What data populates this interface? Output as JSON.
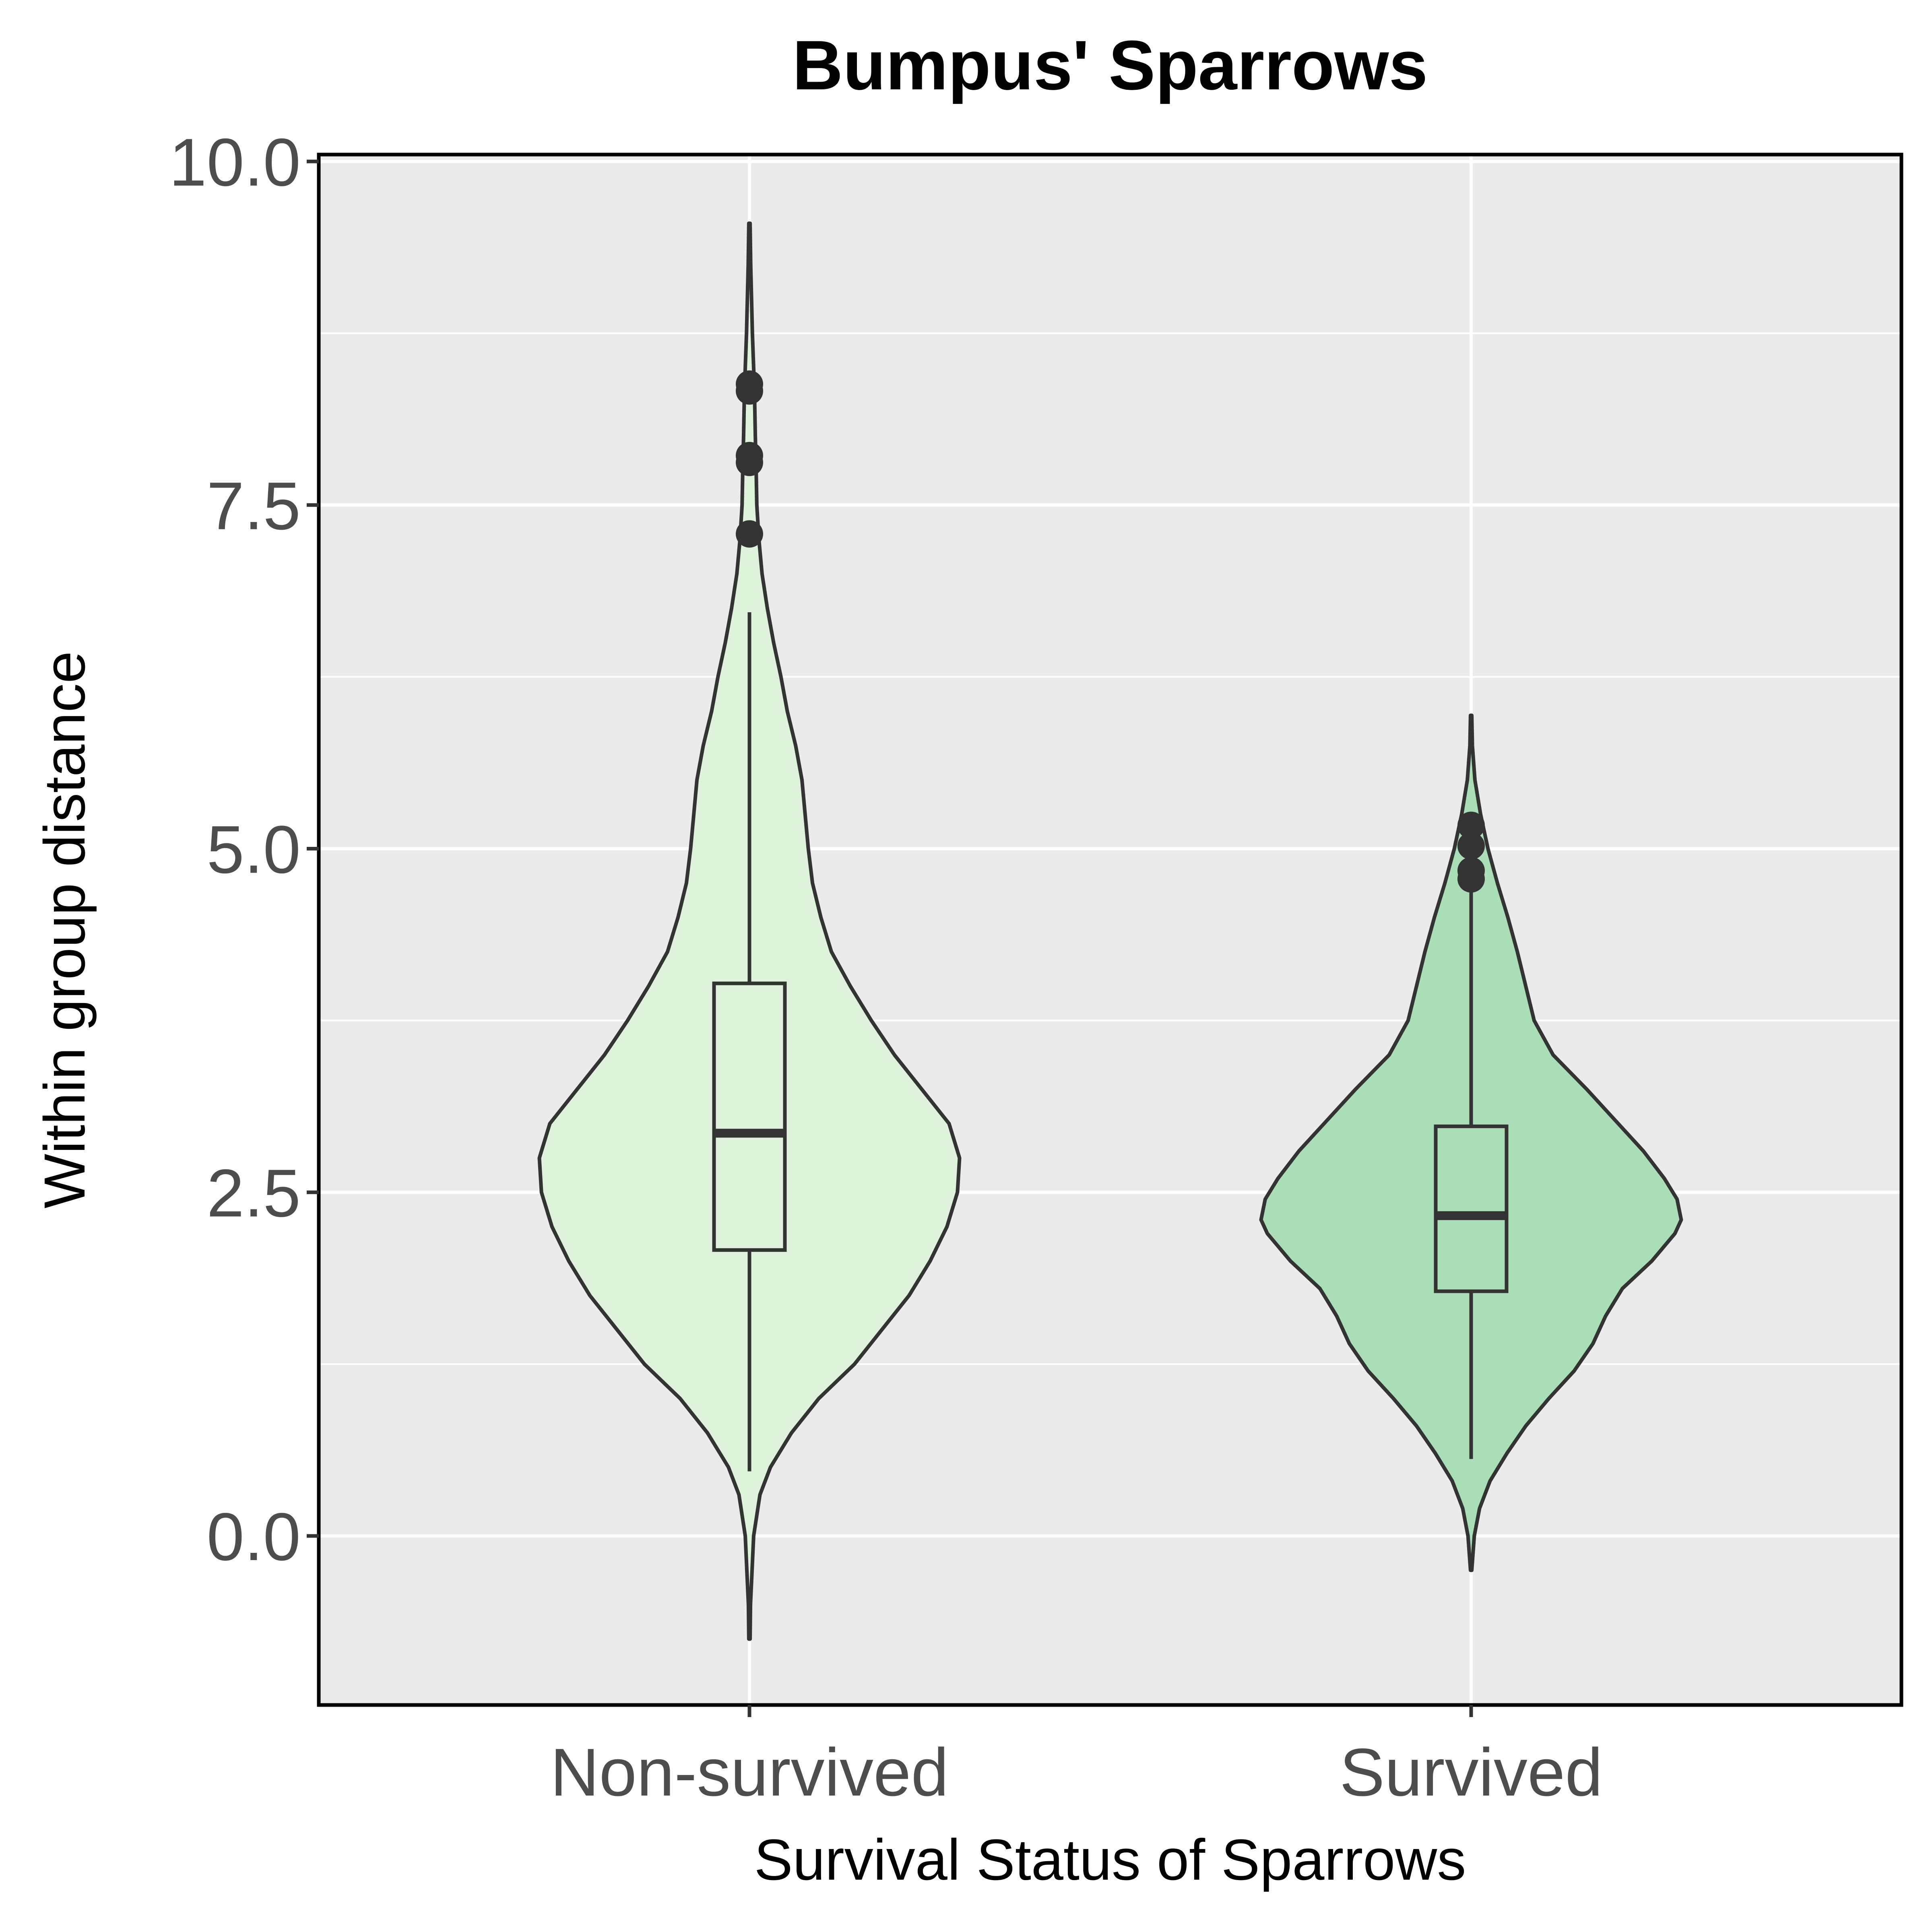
{
  "chart_data": {
    "type": "violin",
    "title": "Bumpus' Sparrows",
    "xlabel": "Survival Status of Sparrows",
    "ylabel": "Within group distance",
    "categories": [
      "Non-survived",
      "Survived"
    ],
    "y_ticks": [
      "0.0",
      "2.5",
      "5.0",
      "7.5",
      "10.0"
    ],
    "y_tick_values": [
      0,
      2.5,
      5,
      7.5,
      10
    ],
    "ylim": [
      -1.23,
      10.05
    ],
    "grid": true,
    "legend": "none",
    "colors": {
      "panel_background": "#ebebeb",
      "grid": "#ffffff",
      "outline": "#333333",
      "panel_border": "#000000"
    },
    "groups": [
      {
        "name": "Non-survived",
        "fill": "#dff2dc",
        "box": {
          "q1": 2.08,
          "median": 2.93,
          "q3": 4.02,
          "whisker_low": 0.47,
          "whisker_high": 6.72
        },
        "outliers": [
          7.29,
          7.81,
          7.86,
          8.33,
          8.38
        ],
        "density": [
          [
            -0.75,
            0.003
          ],
          [
            -0.5,
            0.005
          ],
          [
            0.0,
            0.02
          ],
          [
            0.3,
            0.05
          ],
          [
            0.5,
            0.1
          ],
          [
            0.75,
            0.2
          ],
          [
            1.0,
            0.33
          ],
          [
            1.25,
            0.5
          ],
          [
            1.5,
            0.63
          ],
          [
            1.75,
            0.76
          ],
          [
            2.0,
            0.86
          ],
          [
            2.25,
            0.94
          ],
          [
            2.5,
            0.99
          ],
          [
            2.75,
            1.0
          ],
          [
            3.0,
            0.95
          ],
          [
            3.25,
            0.82
          ],
          [
            3.5,
            0.69
          ],
          [
            3.75,
            0.58
          ],
          [
            4.0,
            0.48
          ],
          [
            4.25,
            0.39
          ],
          [
            4.5,
            0.34
          ],
          [
            4.75,
            0.3
          ],
          [
            5.0,
            0.28
          ],
          [
            5.25,
            0.265
          ],
          [
            5.5,
            0.25
          ],
          [
            5.75,
            0.22
          ],
          [
            6.0,
            0.18
          ],
          [
            6.25,
            0.15
          ],
          [
            6.5,
            0.115
          ],
          [
            6.75,
            0.085
          ],
          [
            7.0,
            0.06
          ],
          [
            7.25,
            0.045
          ],
          [
            7.5,
            0.035
          ],
          [
            7.75,
            0.032
          ],
          [
            8.0,
            0.028
          ],
          [
            8.25,
            0.025
          ],
          [
            8.5,
            0.02
          ],
          [
            8.75,
            0.014
          ],
          [
            9.0,
            0.01
          ],
          [
            9.25,
            0.006
          ],
          [
            9.55,
            0.003
          ]
        ]
      },
      {
        "name": "Survived",
        "fill": "#aadeb7",
        "box": {
          "q1": 1.78,
          "median": 2.33,
          "q3": 2.98,
          "whisker_low": 0.56,
          "whisker_high": 4.72
        },
        "outliers": [
          4.78,
          4.84,
          5.02,
          5.17
        ],
        "density": [
          [
            -0.25,
            0.003
          ],
          [
            0.0,
            0.015
          ],
          [
            0.2,
            0.04
          ],
          [
            0.4,
            0.09
          ],
          [
            0.6,
            0.17
          ],
          [
            0.8,
            0.26
          ],
          [
            1.0,
            0.37
          ],
          [
            1.2,
            0.49
          ],
          [
            1.4,
            0.58
          ],
          [
            1.6,
            0.64
          ],
          [
            1.8,
            0.72
          ],
          [
            2.0,
            0.86
          ],
          [
            2.2,
            0.97
          ],
          [
            2.3,
            1.0
          ],
          [
            2.45,
            0.98
          ],
          [
            2.6,
            0.92
          ],
          [
            2.8,
            0.82
          ],
          [
            3.0,
            0.7
          ],
          [
            3.25,
            0.55
          ],
          [
            3.5,
            0.39
          ],
          [
            3.75,
            0.3
          ],
          [
            4.0,
            0.26
          ],
          [
            4.25,
            0.22
          ],
          [
            4.5,
            0.175
          ],
          [
            4.75,
            0.125
          ],
          [
            5.0,
            0.08
          ],
          [
            5.25,
            0.045
          ],
          [
            5.5,
            0.018
          ],
          [
            5.75,
            0.006
          ],
          [
            5.97,
            0.003
          ]
        ]
      }
    ]
  }
}
